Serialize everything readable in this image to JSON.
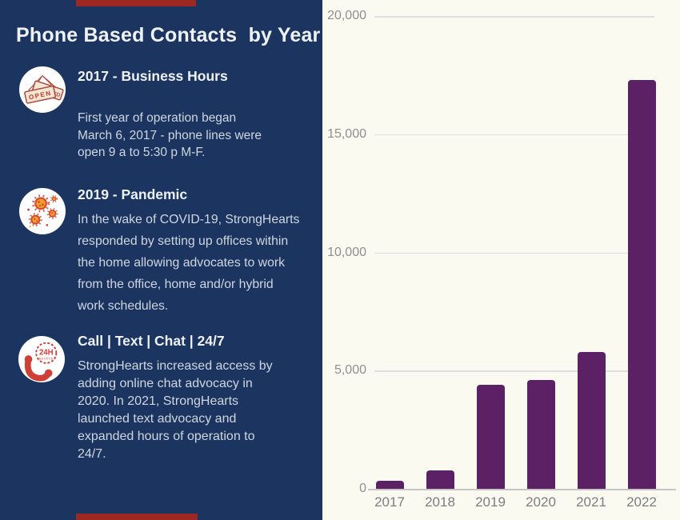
{
  "sidebar": {
    "title": "Phone Based Contacts  by Year",
    "sections": [
      {
        "heading": "2017 - Business Hours",
        "body": "First year of operation began\nMarch 6, 2017 - phone lines were\nopen 9 a to 5:30 p M-F.",
        "icon": "open-closed-sign-icon"
      },
      {
        "heading": "2019 - Pandemic",
        "body": "In the wake of COVID-19, StrongHearts\nresponded by setting up offices within\nthe home allowing advocates to work\nfrom the office, home and/or hybrid\nwork schedules.",
        "icon": "virus-icon"
      },
      {
        "heading": "Call | Text | Chat | 24/7",
        "body": "StrongHearts increased access by\nadding online chat advocacy in\n2020. In 2021, StrongHearts\nlaunched text advocacy and\nexpanded hours of operation to\n24/7.",
        "icon": "24h-phone-icon"
      }
    ],
    "sign_icon": {
      "front_label": "OPEN",
      "back_label": "SED"
    },
    "phone_badge": {
      "line1": "24H",
      "line2": "service"
    }
  },
  "chart_data": {
    "type": "bar",
    "title": "",
    "xlabel": "",
    "ylabel": "",
    "categories": [
      "2017",
      "2018",
      "2019",
      "2020",
      "2021",
      "2022"
    ],
    "values": [
      350,
      770,
      4400,
      4600,
      5800,
      17300
    ],
    "ylim": [
      0,
      20000
    ],
    "yticks": [
      0,
      5000,
      10000,
      15000,
      20000
    ],
    "ytick_labels": [
      "0",
      "5,000",
      "10,000",
      "15,000",
      "20,000"
    ],
    "grid": true,
    "legend": "none",
    "bar_color": "#5b2164",
    "background": "#fbfaf1"
  },
  "colors": {
    "sidebar_navy": "#1c3460",
    "chart_background": "#fbfaf1",
    "bar_purple": "#5b2164",
    "accent_red": "#9e2722",
    "icon_red": "#cf3f36",
    "heading_text": "#eef2f6",
    "body_text": "#cfd6df",
    "y_label_gray": "#8f8f8f",
    "x_label_gray": "#7d7d7d"
  }
}
